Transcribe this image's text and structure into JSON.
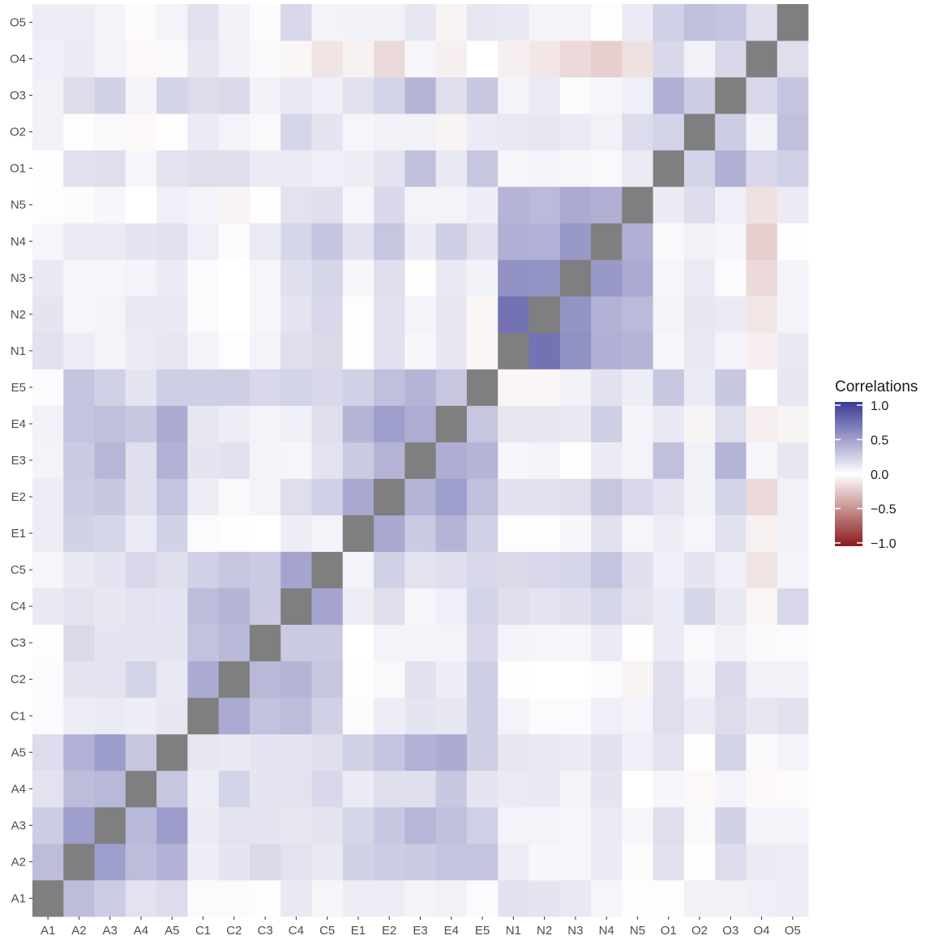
{
  "chart_data": {
    "type": "heatmap",
    "title": "",
    "xlabel": "",
    "ylabel": "",
    "variables": [
      "A1",
      "A2",
      "A3",
      "A4",
      "A5",
      "C1",
      "C2",
      "C3",
      "C4",
      "C5",
      "E1",
      "E2",
      "E3",
      "E4",
      "E5",
      "N1",
      "N2",
      "N3",
      "N4",
      "N5",
      "O1",
      "O2",
      "O3",
      "O4",
      "O5"
    ],
    "diagonal_color": "#7f7f7f",
    "legend": {
      "title": "Correlations",
      "placement": "right",
      "ticks": [
        1.0,
        0.5,
        0.0,
        -0.5,
        -1.0
      ],
      "tick_labels": [
        "1.0",
        "0.5",
        "0.0",
        "−0.5",
        "−1.0"
      ],
      "low_color": "#8b1a1a",
      "mid_color": "#ffffff",
      "high_color": "#3a3a96",
      "limits": [
        -1,
        1
      ]
    },
    "matrix": [
      [
        1.0,
        0.34,
        0.26,
        0.14,
        0.18,
        0.02,
        0.02,
        0.01,
        0.11,
        0.05,
        0.09,
        0.09,
        0.06,
        0.07,
        0.02,
        0.15,
        0.13,
        0.11,
        0.05,
        0.01,
        0.01,
        0.07,
        0.07,
        0.08,
        0.09
      ],
      [
        0.34,
        1.0,
        0.49,
        0.34,
        0.39,
        0.09,
        0.13,
        0.19,
        0.14,
        0.11,
        0.23,
        0.26,
        0.27,
        0.3,
        0.3,
        0.09,
        0.04,
        0.05,
        0.1,
        -0.02,
        0.15,
        0.01,
        0.18,
        0.1,
        0.09
      ],
      [
        0.26,
        0.49,
        1.0,
        0.36,
        0.5,
        0.1,
        0.14,
        0.13,
        0.12,
        0.13,
        0.21,
        0.28,
        0.37,
        0.32,
        0.24,
        0.06,
        0.06,
        0.05,
        0.1,
        0.04,
        0.17,
        0.03,
        0.23,
        0.06,
        0.06
      ],
      [
        0.14,
        0.34,
        0.36,
        1.0,
        0.29,
        0.09,
        0.22,
        0.13,
        0.14,
        0.2,
        0.1,
        0.16,
        0.16,
        0.28,
        0.13,
        0.1,
        0.11,
        0.06,
        0.13,
        0.0,
        0.05,
        -0.03,
        0.06,
        -0.03,
        -0.02
      ],
      [
        0.18,
        0.39,
        0.5,
        0.29,
        1.0,
        0.12,
        0.11,
        0.13,
        0.13,
        0.16,
        0.23,
        0.3,
        0.39,
        0.42,
        0.25,
        0.12,
        0.11,
        0.1,
        0.15,
        0.08,
        0.14,
        0.01,
        0.22,
        0.03,
        0.06
      ],
      [
        0.02,
        0.09,
        0.1,
        0.09,
        0.12,
        1.0,
        0.43,
        0.31,
        0.34,
        0.24,
        0.02,
        0.09,
        0.13,
        0.12,
        0.25,
        0.06,
        0.02,
        0.02,
        0.08,
        0.06,
        0.17,
        0.1,
        0.18,
        0.12,
        0.15
      ],
      [
        0.02,
        0.13,
        0.14,
        0.22,
        0.11,
        0.43,
        1.0,
        0.36,
        0.38,
        0.29,
        0.01,
        0.03,
        0.15,
        0.09,
        0.25,
        0.01,
        0.0,
        0.0,
        0.02,
        -0.05,
        0.17,
        0.06,
        0.19,
        0.07,
        0.07
      ],
      [
        0.01,
        0.19,
        0.13,
        0.13,
        0.13,
        0.31,
        0.36,
        1.0,
        0.27,
        0.27,
        0.0,
        0.06,
        0.06,
        0.06,
        0.2,
        0.06,
        0.05,
        0.05,
        0.1,
        0.01,
        0.1,
        0.03,
        0.07,
        0.03,
        0.02
      ],
      [
        0.11,
        0.14,
        0.12,
        0.14,
        0.13,
        0.34,
        0.38,
        0.27,
        1.0,
        0.46,
        0.09,
        0.17,
        0.05,
        0.08,
        0.22,
        0.17,
        0.13,
        0.16,
        0.21,
        0.14,
        0.1,
        0.21,
        0.11,
        -0.04,
        0.2
      ],
      [
        0.05,
        0.11,
        0.13,
        0.2,
        0.16,
        0.24,
        0.29,
        0.27,
        0.46,
        1.0,
        0.06,
        0.24,
        0.14,
        0.17,
        0.2,
        0.19,
        0.2,
        0.21,
        0.3,
        0.16,
        0.08,
        0.13,
        0.08,
        -0.12,
        0.06
      ],
      [
        0.09,
        0.23,
        0.21,
        0.1,
        0.23,
        0.02,
        0.01,
        0.0,
        0.09,
        0.06,
        1.0,
        0.44,
        0.27,
        0.38,
        0.24,
        0.01,
        0.01,
        0.04,
        0.15,
        0.05,
        0.09,
        0.05,
        0.15,
        -0.06,
        0.07
      ],
      [
        0.09,
        0.26,
        0.28,
        0.16,
        0.3,
        0.09,
        0.03,
        0.06,
        0.17,
        0.24,
        0.44,
        1.0,
        0.38,
        0.49,
        0.32,
        0.15,
        0.15,
        0.17,
        0.29,
        0.2,
        0.14,
        0.07,
        0.22,
        -0.17,
        0.07
      ],
      [
        0.06,
        0.27,
        0.37,
        0.16,
        0.39,
        0.13,
        0.15,
        0.06,
        0.05,
        0.14,
        0.27,
        0.38,
        1.0,
        0.41,
        0.38,
        0.04,
        0.06,
        0.01,
        0.1,
        0.06,
        0.32,
        0.07,
        0.38,
        0.05,
        0.12
      ],
      [
        0.07,
        0.3,
        0.32,
        0.28,
        0.42,
        0.12,
        0.09,
        0.06,
        0.08,
        0.17,
        0.38,
        0.49,
        0.41,
        1.0,
        0.29,
        0.12,
        0.12,
        0.11,
        0.25,
        0.06,
        0.11,
        -0.05,
        0.17,
        -0.07,
        -0.05
      ],
      [
        0.02,
        0.3,
        0.24,
        0.13,
        0.25,
        0.25,
        0.25,
        0.2,
        0.22,
        0.2,
        0.24,
        0.32,
        0.38,
        0.29,
        1.0,
        -0.04,
        -0.04,
        0.07,
        0.15,
        0.09,
        0.29,
        0.1,
        0.28,
        0.0,
        0.12
      ],
      [
        0.15,
        0.09,
        0.06,
        0.1,
        0.12,
        0.06,
        0.01,
        0.06,
        0.17,
        0.19,
        0.01,
        0.15,
        0.04,
        0.12,
        -0.04,
        1.0,
        0.71,
        0.56,
        0.4,
        0.38,
        0.05,
        0.11,
        0.06,
        -0.07,
        0.11
      ],
      [
        0.13,
        0.04,
        0.06,
        0.11,
        0.11,
        0.02,
        0.0,
        0.05,
        0.13,
        0.2,
        0.01,
        0.15,
        0.06,
        0.12,
        -0.04,
        0.71,
        1.0,
        0.55,
        0.39,
        0.35,
        0.06,
        0.12,
        0.1,
        -0.11,
        0.06
      ],
      [
        0.11,
        0.05,
        0.05,
        0.06,
        0.1,
        0.02,
        0.0,
        0.05,
        0.16,
        0.21,
        0.04,
        0.17,
        0.01,
        0.11,
        0.07,
        0.56,
        0.55,
        1.0,
        0.52,
        0.43,
        0.05,
        0.1,
        0.02,
        -0.16,
        0.06
      ],
      [
        0.05,
        0.1,
        0.1,
        0.13,
        0.15,
        0.08,
        0.02,
        0.1,
        0.21,
        0.3,
        0.15,
        0.29,
        0.1,
        0.25,
        0.15,
        0.4,
        0.39,
        0.52,
        1.0,
        0.4,
        0.03,
        0.07,
        0.05,
        -0.21,
        0.01
      ],
      [
        0.01,
        -0.02,
        0.04,
        0.0,
        0.08,
        0.06,
        -0.05,
        0.01,
        0.14,
        0.16,
        0.05,
        0.2,
        0.06,
        0.06,
        0.09,
        0.38,
        0.35,
        0.43,
        0.4,
        1.0,
        0.1,
        0.18,
        0.08,
        -0.13,
        0.1
      ],
      [
        0.01,
        0.15,
        0.17,
        0.05,
        0.14,
        0.17,
        0.17,
        0.1,
        0.1,
        0.08,
        0.09,
        0.14,
        0.32,
        0.11,
        0.29,
        0.05,
        0.06,
        0.05,
        0.03,
        0.1,
        1.0,
        0.22,
        0.4,
        0.2,
        0.24
      ],
      [
        0.07,
        0.01,
        0.03,
        -0.03,
        0.01,
        0.1,
        0.06,
        0.03,
        0.21,
        0.13,
        0.05,
        0.07,
        0.07,
        -0.05,
        0.1,
        0.11,
        0.12,
        0.1,
        0.07,
        0.18,
        0.22,
        1.0,
        0.26,
        0.07,
        0.32
      ],
      [
        0.07,
        0.18,
        0.23,
        0.06,
        0.22,
        0.18,
        0.19,
        0.07,
        0.11,
        0.08,
        0.15,
        0.22,
        0.38,
        0.17,
        0.28,
        0.06,
        0.1,
        0.02,
        0.05,
        0.08,
        0.4,
        0.26,
        1.0,
        0.2,
        0.3
      ],
      [
        0.08,
        0.1,
        0.06,
        -0.03,
        0.03,
        0.12,
        0.07,
        0.03,
        -0.04,
        -0.12,
        -0.06,
        -0.17,
        0.05,
        -0.07,
        0.0,
        -0.07,
        -0.11,
        -0.16,
        -0.21,
        -0.13,
        0.2,
        0.07,
        0.2,
        1.0,
        0.17
      ],
      [
        0.09,
        0.09,
        0.06,
        -0.02,
        0.06,
        0.15,
        0.07,
        0.02,
        0.2,
        0.06,
        0.07,
        0.07,
        0.12,
        -0.05,
        0.12,
        0.11,
        0.06,
        0.06,
        0.01,
        0.1,
        0.24,
        0.32,
        0.3,
        0.17,
        1.0
      ]
    ]
  }
}
